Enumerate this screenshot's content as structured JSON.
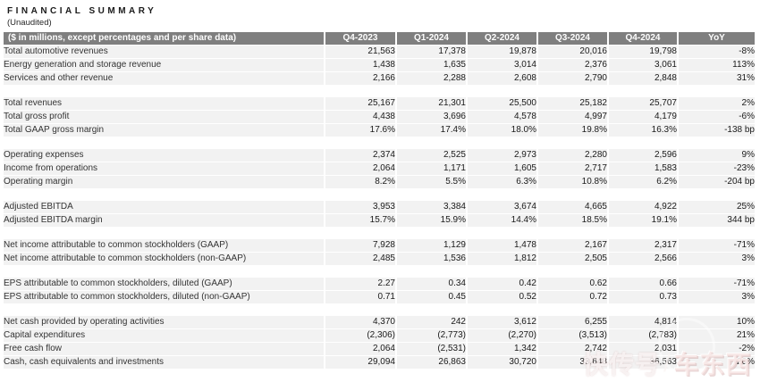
{
  "page": {
    "title": "FINANCIAL SUMMARY",
    "subtitle": "(Unaudited)"
  },
  "table": {
    "header": {
      "label": "($ in millions, except percentages and per share data)",
      "columns": [
        "Q4-2023",
        "Q1-2024",
        "Q2-2024",
        "Q3-2024",
        "Q4-2024",
        "YoY"
      ]
    },
    "highlight_column": "Q4-2024",
    "sections": [
      {
        "rows": [
          {
            "label": "Total automotive revenues",
            "values": [
              "21,563",
              "17,378",
              "19,878",
              "20,016",
              "19,798",
              "-8%"
            ]
          },
          {
            "label": "Energy generation and storage revenue",
            "values": [
              "1,438",
              "1,635",
              "3,014",
              "2,376",
              "3,061",
              "113%"
            ]
          },
          {
            "label": "Services and other revenue",
            "values": [
              "2,166",
              "2,288",
              "2,608",
              "2,790",
              "2,848",
              "31%"
            ]
          }
        ]
      },
      {
        "rows": [
          {
            "label": "Total revenues",
            "values": [
              "25,167",
              "21,301",
              "25,500",
              "25,182",
              "25,707",
              "2%"
            ]
          },
          {
            "label": "Total gross profit",
            "values": [
              "4,438",
              "3,696",
              "4,578",
              "4,997",
              "4,179",
              "-6%"
            ]
          },
          {
            "label": "Total GAAP gross margin",
            "values": [
              "17.6%",
              "17.4%",
              "18.0%",
              "19.8%",
              "16.3%",
              "-138 bp"
            ]
          }
        ]
      },
      {
        "rows": [
          {
            "label": "Operating expenses",
            "values": [
              "2,374",
              "2,525",
              "2,973",
              "2,280",
              "2,596",
              "9%"
            ]
          },
          {
            "label": "Income from operations",
            "values": [
              "2,064",
              "1,171",
              "1,605",
              "2,717",
              "1,583",
              "-23%"
            ]
          },
          {
            "label": "Operating margin",
            "values": [
              "8.2%",
              "5.5%",
              "6.3%",
              "10.8%",
              "6.2%",
              "-204 bp"
            ]
          }
        ]
      },
      {
        "rows": [
          {
            "label": "Adjusted EBITDA",
            "values": [
              "3,953",
              "3,384",
              "3,674",
              "4,665",
              "4,922",
              "25%"
            ]
          },
          {
            "label": "Adjusted EBITDA margin",
            "values": [
              "15.7%",
              "15.9%",
              "14.4%",
              "18.5%",
              "19.1%",
              "344 bp"
            ]
          }
        ]
      },
      {
        "rows": [
          {
            "label": "Net income attributable to common stockholders (GAAP)",
            "values": [
              "7,928",
              "1,129",
              "1,478",
              "2,167",
              "2,317",
              "-71%"
            ]
          },
          {
            "label": "Net income attributable to common stockholders (non-GAAP)",
            "values": [
              "2,485",
              "1,536",
              "1,812",
              "2,505",
              "2,566",
              "3%"
            ]
          }
        ]
      },
      {
        "rows": [
          {
            "label": "EPS attributable to common stockholders, diluted (GAAP)",
            "values": [
              "2.27",
              "0.34",
              "0.42",
              "0.62",
              "0.66",
              "-71%"
            ]
          },
          {
            "label": "EPS attributable to common stockholders, diluted (non-GAAP)",
            "values": [
              "0.71",
              "0.45",
              "0.52",
              "0.72",
              "0.73",
              "3%"
            ]
          }
        ]
      },
      {
        "rows": [
          {
            "label": "Net cash provided by operating activities",
            "values": [
              "4,370",
              "242",
              "3,612",
              "6,255",
              "4,814",
              "10%"
            ]
          },
          {
            "label": "Capital expenditures",
            "values": [
              "(2,306)",
              "(2,773)",
              "(2,270)",
              "(3,513)",
              "(2,783)",
              "21%"
            ]
          },
          {
            "label": "Free cash flow",
            "values": [
              "2,064",
              "(2,531)",
              "1,342",
              "2,742",
              "2,031",
              "-2%"
            ]
          },
          {
            "label": "Cash, cash equivalents and investments",
            "values": [
              "29,094",
              "26,863",
              "30,720",
              "33,648",
              "36,563",
              "26%"
            ]
          }
        ]
      }
    ]
  },
  "watermark": {
    "text_left": "快传号",
    "separator": "/",
    "text_right": "车东西"
  },
  "colors": {
    "header_bg": "#7f7f7f",
    "header_text": "#ffffff",
    "row_bg": "#f2f2f2",
    "highlight_bg": "#f2dcdb",
    "body_text": "#262626"
  }
}
